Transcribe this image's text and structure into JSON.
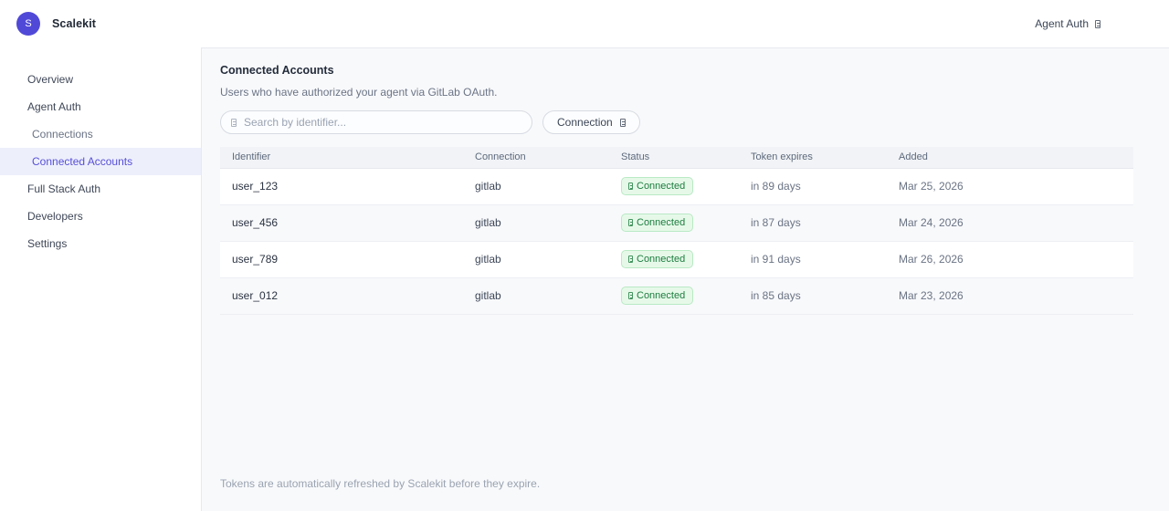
{
  "topbar": {
    "logo_letter": "S",
    "brand": "Scalekit",
    "env_switcher": "Agent Auth"
  },
  "sidebar": {
    "items": [
      {
        "label": "Overview"
      },
      {
        "label": "Agent Auth"
      },
      {
        "label": "Connections"
      },
      {
        "label": "Connected Accounts"
      },
      {
        "label": "Full Stack Auth"
      },
      {
        "label": "Developers"
      },
      {
        "label": "Settings"
      }
    ]
  },
  "main": {
    "title": "Connected Accounts",
    "subtitle": "Users who have authorized your agent via GitLab OAuth.",
    "search": {
      "placeholder": "Search by identifier...",
      "icon": "search-icon"
    },
    "filter": {
      "label": "Connection",
      "icon": "chevron-down-icon"
    },
    "table": {
      "columns": [
        "Identifier",
        "Connection",
        "Status",
        "Token expires",
        "Added"
      ],
      "rows": [
        {
          "identifier": "user_123",
          "connection": "gitlab",
          "status": "Connected",
          "token_expires": "in 89 days",
          "added": "Mar 25, 2026"
        },
        {
          "identifier": "user_456",
          "connection": "gitlab",
          "status": "Connected",
          "token_expires": "in 87 days",
          "added": "Mar 24, 2026"
        },
        {
          "identifier": "user_789",
          "connection": "gitlab",
          "status": "Connected",
          "token_expires": "in 91 days",
          "added": "Mar 26, 2026"
        },
        {
          "identifier": "user_012",
          "connection": "gitlab",
          "status": "Connected",
          "token_expires": "in 85 days",
          "added": "Mar 23, 2026"
        }
      ]
    },
    "footer_note": "Tokens are automatically refreshed by Scalekit before they expire."
  },
  "colors": {
    "accent": "#5049d7",
    "active_item_bg": "#edeffb",
    "active_item_text": "#574fd8",
    "badge_bg": "#e6f9e9",
    "badge_border": "#b9e9c4",
    "badge_text": "#1d7d3f",
    "content_bg": "#f8f9fb"
  }
}
